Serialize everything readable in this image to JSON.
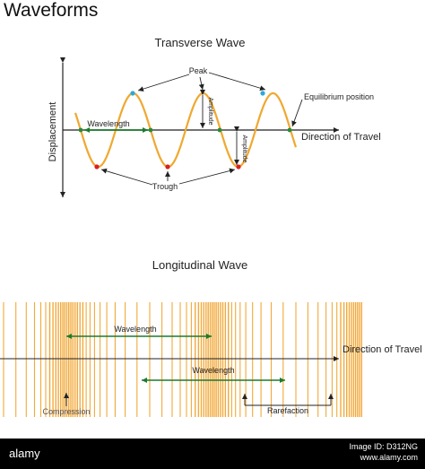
{
  "title": "Waveforms",
  "transverse": {
    "heading": "Transverse Wave",
    "y_axis_label": "Displacement",
    "x_axis_label": "Direction of Travel",
    "peak_label": "Peak",
    "trough_label": "Trough",
    "wavelength_label": "Wavelength",
    "amplitude_label": "Amplitude",
    "equilibrium_label": "Equilibrium position",
    "cycles": 3,
    "colors": {
      "wave": "#f0a830",
      "peak_dot": "#2aa8d8",
      "trough_dot": "#d82020",
      "node_dot": "#2a8a3a",
      "wavelength_arrow": "#1e7a2e"
    }
  },
  "longitudinal": {
    "heading": "Longitudinal Wave",
    "x_axis_label": "Direction of Travel",
    "wavelength_label_top": "Wavelength",
    "wavelength_label_bottom": "Wavelength",
    "compression_label": "Compression",
    "rarefaction_label": "Rarefaction",
    "colors": {
      "line": "#f2a93b",
      "arrow": "#1e7a2e"
    }
  },
  "watermark": {
    "left": "alamy",
    "right_line1": "Image ID: D312NG",
    "right_line2": "www.alamy.com"
  }
}
